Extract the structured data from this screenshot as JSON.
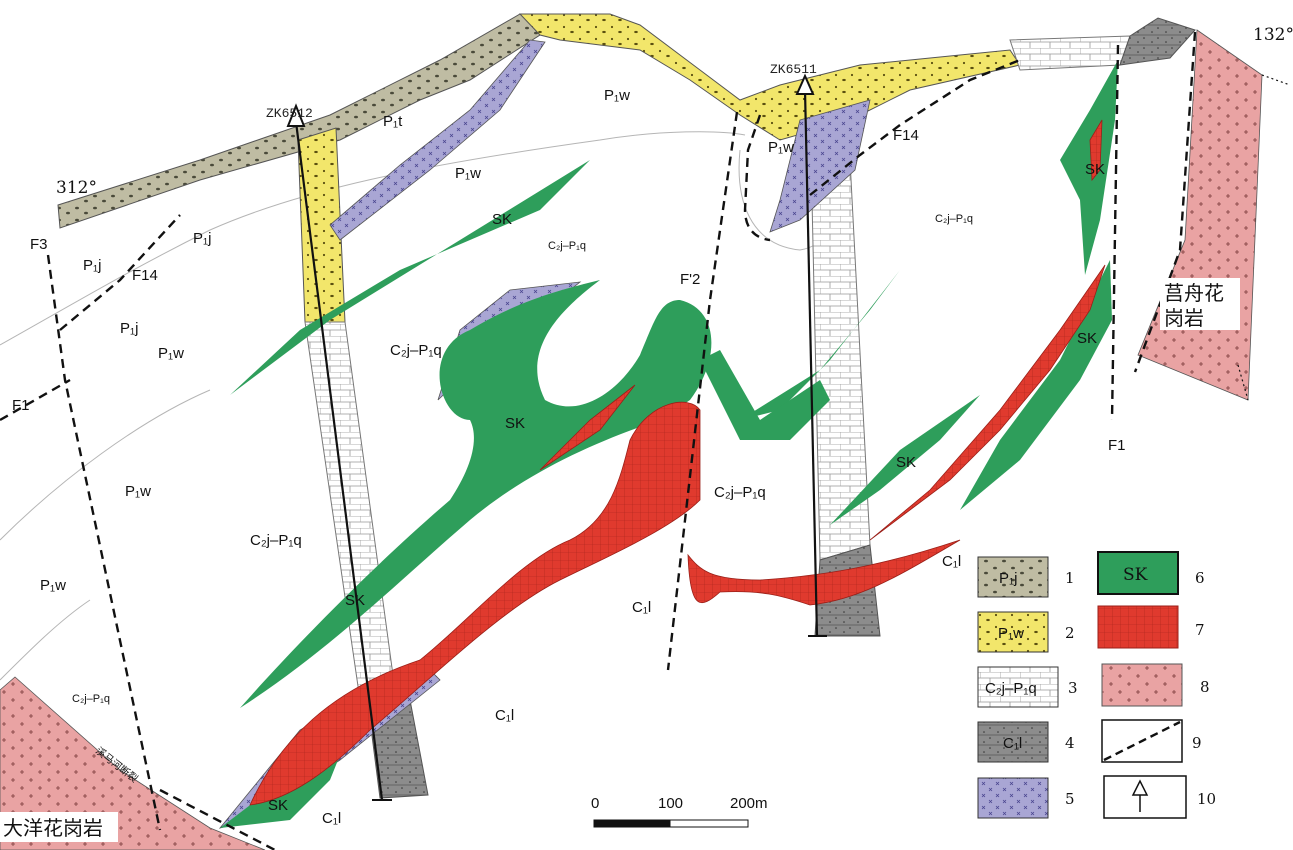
{
  "figure": {
    "azimuth_left": "312°",
    "azimuth_right": "132°"
  },
  "boreholes": [
    {
      "id": "ZK6512"
    },
    {
      "id": "ZK6511"
    }
  ],
  "faults": [
    "F3",
    "F14",
    "F14",
    "F1",
    "F1",
    "F'2"
  ],
  "intrusions": {
    "left": "大洋花岗岩",
    "right_line1": "莒舟花",
    "right_line2": "岗岩",
    "fault_name": "溪马河断裂"
  },
  "unit_labels": {
    "p1j": "P₁j",
    "p1w": "P₁w",
    "p1t": "P₁t",
    "c2j_p1q": "C₂j–P₁q",
    "c1l": "C₁l",
    "sk": "SK"
  },
  "legend": [
    {
      "num": "1",
      "label": "P₁j",
      "color": "#bfbca3"
    },
    {
      "num": "2",
      "label": "P₁w",
      "color": "#f2e66b"
    },
    {
      "num": "3",
      "label": "C₂j–P₁q",
      "color": "#ffffff"
    },
    {
      "num": "4",
      "label": "C₁l",
      "color": "#8c8c8c"
    },
    {
      "num": "5",
      "label": "",
      "color": "#a9a6d4"
    },
    {
      "num": "6",
      "label": "SK",
      "color": "#2e9e5b"
    },
    {
      "num": "7",
      "label": "",
      "color": "#e03a2e"
    },
    {
      "num": "8",
      "label": "",
      "color": "#e9a3a3"
    },
    {
      "num": "9",
      "label": "",
      "color": "#111111"
    },
    {
      "num": "10",
      "label": "",
      "color": "#111111"
    }
  ],
  "scale_bar": {
    "ticks": [
      "0",
      "100",
      "200m"
    ]
  }
}
